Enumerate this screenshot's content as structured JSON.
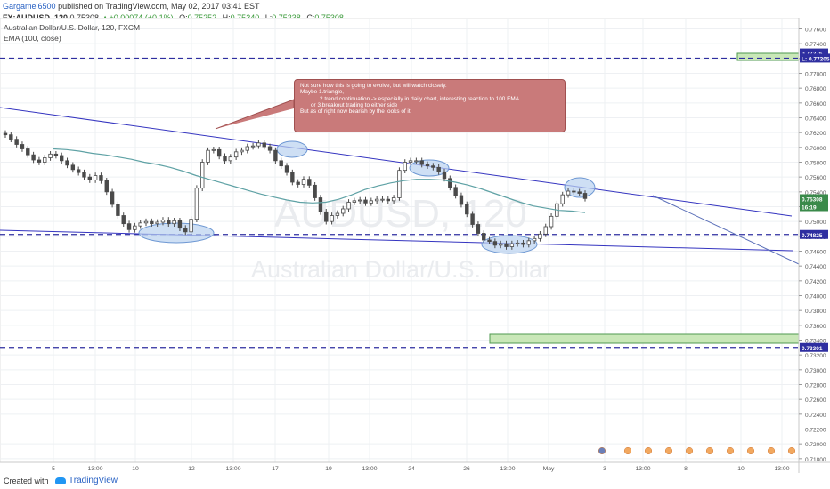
{
  "header": {
    "author": "Gargamel6500",
    "published_text": "published on TradingView.com, May 02, 2017 03:41 EST",
    "symbol": "FX:AUDUSD, 120",
    "last_price": "0.75308",
    "change": "+0.00074 (+0.1%)",
    "o_label": "O:",
    "o_value": "0.75252",
    "h_label": "H:",
    "h_value": "0.75340",
    "l_label": "L:",
    "l_value": "0.75238",
    "c_label": "C:",
    "c_value": "0.75308"
  },
  "chart_data": {
    "type": "line",
    "title": "Australian Dollar/U.S. Dollar, 120, FXCM",
    "indicator": "EMA (100, close)",
    "watermark_symbol": "AUDUSD, 120",
    "watermark_name": "Australian Dollar/U.S. Dollar",
    "x_ticks": [
      "5",
      "13:00",
      "10",
      "12",
      "13:00",
      "17",
      "19",
      "13:00",
      "24",
      "26",
      "13:00",
      "May",
      "3",
      "13:00",
      "8",
      "10",
      "13:00"
    ],
    "y_ticks": [
      "0.77600",
      "0.77400",
      "0.77200",
      "0.77000",
      "0.76800",
      "0.76600",
      "0.76400",
      "0.76200",
      "0.76000",
      "0.75800",
      "0.75600",
      "0.75400",
      "0.75200",
      "0.75000",
      "0.74800",
      "0.74600",
      "0.74400",
      "0.74200",
      "0.74000",
      "0.73800",
      "0.73600",
      "0.73400",
      "0.73200",
      "0.73000",
      "0.72800",
      "0.72600",
      "0.72400",
      "0.72200",
      "0.72000",
      "0.71800"
    ],
    "ylim": [
      0.7175,
      0.7775
    ],
    "price_labels": [
      {
        "text": "0.77275",
        "value": 0.77275,
        "color": "#2e2ea0"
      },
      {
        "text": "L: 0.77205",
        "value": 0.77205,
        "color": "#2e2ea0"
      },
      {
        "text": "0.75308",
        "value": 0.75308,
        "color": "#3a8a4a"
      },
      {
        "text": "16:19",
        "value": 0.752,
        "color": "#3a8a4a"
      },
      {
        "text": "0.74825",
        "value": 0.74825,
        "color": "#2e2ea0"
      },
      {
        "text": "0.73301",
        "value": 0.73301,
        "color": "#2e2ea0"
      }
    ],
    "horizontal_levels": [
      0.77205,
      0.74825,
      0.73301
    ],
    "price_series": [
      0.7617,
      0.7611,
      0.7604,
      0.7598,
      0.759,
      0.7583,
      0.758,
      0.7586,
      0.7591,
      0.7589,
      0.7582,
      0.7576,
      0.757,
      0.7566,
      0.756,
      0.7556,
      0.7562,
      0.7555,
      0.754,
      0.7523,
      0.7508,
      0.7497,
      0.7489,
      0.7494,
      0.7498,
      0.75,
      0.7497,
      0.7499,
      0.7502,
      0.7497,
      0.7501,
      0.7491,
      0.7486,
      0.7503,
      0.7545,
      0.758,
      0.7596,
      0.7597,
      0.7588,
      0.7582,
      0.7587,
      0.7594,
      0.7596,
      0.7601,
      0.7602,
      0.7606,
      0.7601,
      0.7596,
      0.7582,
      0.7575,
      0.7566,
      0.7553,
      0.755,
      0.7557,
      0.7549,
      0.7532,
      0.7513,
      0.75,
      0.7508,
      0.7511,
      0.7517,
      0.7526,
      0.7528,
      0.7529,
      0.7525,
      0.7528,
      0.753,
      0.753,
      0.7528,
      0.7532,
      0.7569,
      0.758,
      0.7582,
      0.7582,
      0.7577,
      0.7575,
      0.7573,
      0.7567,
      0.7558,
      0.7546,
      0.7535,
      0.7523,
      0.751,
      0.7496,
      0.7484,
      0.7475,
      0.7473,
      0.7468,
      0.747,
      0.7466,
      0.747,
      0.7471,
      0.7469,
      0.7474,
      0.7477,
      0.7483,
      0.7493,
      0.7507,
      0.7524,
      0.7536,
      0.7541,
      0.754,
      0.7538,
      0.7531
    ],
    "ema_series": [
      0.7598,
      0.7597,
      0.7595,
      0.7592,
      0.759,
      0.7587,
      0.7584,
      0.758,
      0.7577,
      0.7573,
      0.7568,
      0.7562,
      0.7557,
      0.7552,
      0.7547,
      0.7542,
      0.7537,
      0.7533,
      0.7529,
      0.7526,
      0.7525,
      0.7526,
      0.753,
      0.7536,
      0.7543,
      0.7548,
      0.7552,
      0.7555,
      0.7557,
      0.7557,
      0.7556,
      0.7553,
      0.7549,
      0.7544,
      0.7538,
      0.7532,
      0.7526,
      0.7521,
      0.7518,
      0.7515,
      0.7514,
      0.7512
    ],
    "annotation": {
      "lines": [
        "Not sure how this is going to evolve, but will watch closely.",
        "Maybe 1.triangle,",
        "2.trend continuation -> especially in daily chart, interesting reaction to 100 EMA",
        "or 3.breakout trading to either side",
        "",
        "But as of right now bearish by the looks of it."
      ]
    },
    "grid": true
  },
  "footer": {
    "created_with": "Created with",
    "brand": "TradingView"
  },
  "colors": {
    "candle": "#4a4a4a",
    "ema": "#5fa2a5",
    "trendline": "#3535c0",
    "level": "#2e2ea0",
    "zone_fill": "#c9e7b8",
    "zone_border": "#4f9a4f",
    "ellipse_fill": "#b9d2ef",
    "ellipse_border": "#6e98d3",
    "note_fill": "#c97a7a"
  }
}
